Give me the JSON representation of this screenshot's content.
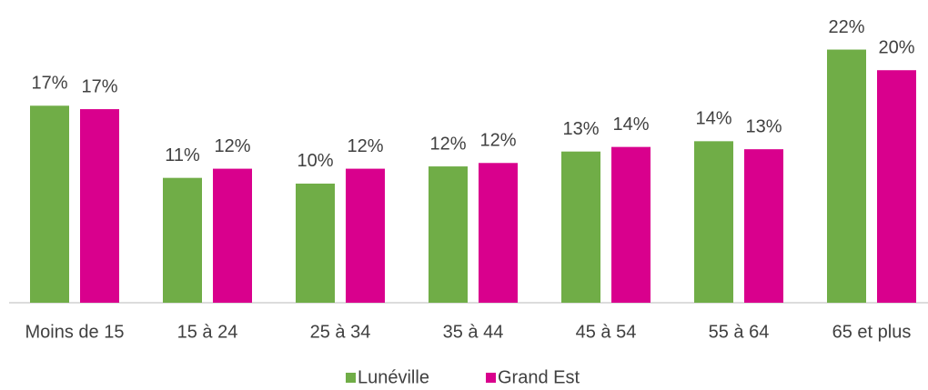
{
  "chart_data": {
    "type": "bar",
    "categories": [
      "Moins de 15",
      "15 à 24",
      "25 à 34",
      "35 à 44",
      "45 à 54",
      "55 à 64",
      "65 et plus"
    ],
    "series": [
      {
        "name": "Lunéville",
        "color": "#70ad47",
        "values": [
          17.2,
          10.9,
          10.4,
          11.9,
          13.2,
          14.1,
          22.1
        ],
        "value_labels": [
          "17%",
          "11%",
          "10%",
          "12%",
          "13%",
          "14%",
          "22%"
        ]
      },
      {
        "name": "Grand Est",
        "color": "#d9008d",
        "values": [
          16.9,
          11.7,
          11.7,
          12.2,
          13.6,
          13.4,
          20.3
        ],
        "value_labels": [
          "17%",
          "12%",
          "12%",
          "12%",
          "14%",
          "13%",
          "20%"
        ]
      }
    ],
    "ylim": [
      0,
      25
    ],
    "legend": "bottom"
  }
}
